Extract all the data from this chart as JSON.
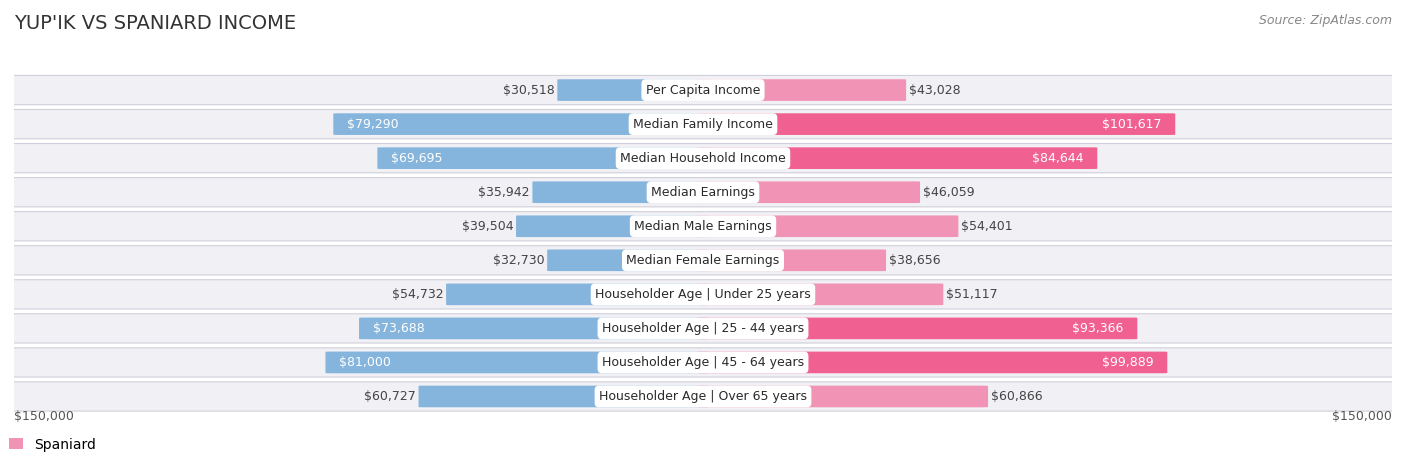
{
  "title": "YUP'IK VS SPANIARD INCOME",
  "source": "Source: ZipAtlas.com",
  "categories": [
    "Per Capita Income",
    "Median Family Income",
    "Median Household Income",
    "Median Earnings",
    "Median Male Earnings",
    "Median Female Earnings",
    "Householder Age | Under 25 years",
    "Householder Age | 25 - 44 years",
    "Householder Age | 45 - 64 years",
    "Householder Age | Over 65 years"
  ],
  "yupik_values": [
    30518,
    79290,
    69695,
    35942,
    39504,
    32730,
    54732,
    73688,
    81000,
    60727
  ],
  "spaniard_values": [
    43028,
    101617,
    84644,
    46059,
    54401,
    38656,
    51117,
    93366,
    99889,
    60866
  ],
  "yupik_labels": [
    "$30,518",
    "$79,290",
    "$69,695",
    "$35,942",
    "$39,504",
    "$32,730",
    "$54,732",
    "$73,688",
    "$81,000",
    "$60,727"
  ],
  "spaniard_labels": [
    "$43,028",
    "$101,617",
    "$84,644",
    "$46,059",
    "$54,401",
    "$38,656",
    "$51,117",
    "$93,366",
    "$99,889",
    "$60,866"
  ],
  "yupik_label_inside": [
    false,
    true,
    true,
    false,
    false,
    false,
    false,
    true,
    true,
    false
  ],
  "spaniard_label_inside": [
    false,
    true,
    true,
    false,
    false,
    false,
    false,
    true,
    true,
    false
  ],
  "yupik_color": "#85b5dc",
  "spaniard_color": "#f093b4",
  "spaniard_color_vivid": "#f06090",
  "row_bg_color": "#f0f0f5",
  "row_border_color": "#d0d0da",
  "max_value": 150000,
  "x_label_left": "$150,000",
  "x_label_right": "$150,000",
  "background_color": "#ffffff",
  "title_fontsize": 14,
  "source_fontsize": 9,
  "bar_label_fontsize": 9,
  "category_fontsize": 9,
  "legend_fontsize": 10
}
